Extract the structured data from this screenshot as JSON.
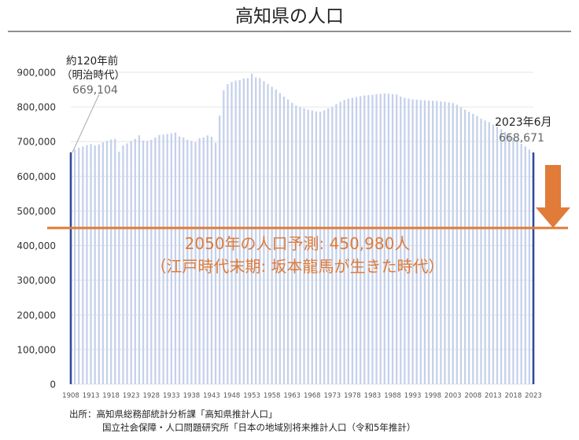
{
  "title": "高知県の人口",
  "colors": {
    "bar": "#c5d1ea",
    "bar_highlight": "#2f4a9e",
    "prediction_line": "#e07b39",
    "prediction_text": "#e07b39",
    "text": "#333333",
    "axis_label": "#888888"
  },
  "annotations": {
    "start_label_line1": "約120年前",
    "start_label_line2": "（明治時代）",
    "start_value": "669,104",
    "end_label": "2023年6月",
    "end_value": "668,671",
    "prediction_line1": "2050年の人口予測: 450,980人",
    "prediction_line2": "（江戸時代末期: 坂本龍馬が生きた時代）"
  },
  "source": {
    "line1": "出所：高知県総務部統計分析課「高知県推計人口」",
    "line2": "国立社会保障・人口問題研究所「日本の地域別将来推計人口（令和5年推計）"
  },
  "chart_data": {
    "type": "bar",
    "title": "高知県の人口",
    "xlabel": "",
    "ylabel": "",
    "ylim": [
      0,
      900000
    ],
    "yticks": [
      "0",
      "100,000",
      "200,000",
      "300,000",
      "400,000",
      "500,000",
      "600,000",
      "700,000",
      "800,000",
      "900,000"
    ],
    "xtick_labels": [
      "1908",
      "1913",
      "1918",
      "1923",
      "1928",
      "1933",
      "1938",
      "1943",
      "1948",
      "1953",
      "1958",
      "1963",
      "1968",
      "1973",
      "1978",
      "1983",
      "1988",
      "1993",
      "1998",
      "2003",
      "2008",
      "2013",
      "2018",
      "2023"
    ],
    "grid": true,
    "reference_line": {
      "value": 450980,
      "label": "2050年の人口予測: 450,980人"
    },
    "categories": [
      1908,
      1909,
      1910,
      1911,
      1912,
      1913,
      1914,
      1915,
      1916,
      1917,
      1918,
      1919,
      1920,
      1921,
      1922,
      1923,
      1924,
      1925,
      1926,
      1927,
      1928,
      1929,
      1930,
      1931,
      1932,
      1933,
      1934,
      1935,
      1936,
      1937,
      1938,
      1939,
      1940,
      1941,
      1942,
      1943,
      1944,
      1945,
      1946,
      1947,
      1948,
      1949,
      1950,
      1951,
      1952,
      1953,
      1954,
      1955,
      1956,
      1957,
      1958,
      1959,
      1960,
      1961,
      1962,
      1963,
      1964,
      1965,
      1966,
      1967,
      1968,
      1969,
      1970,
      1971,
      1972,
      1973,
      1974,
      1975,
      1976,
      1977,
      1978,
      1979,
      1980,
      1981,
      1982,
      1983,
      1984,
      1985,
      1986,
      1987,
      1988,
      1989,
      1990,
      1991,
      1992,
      1993,
      1994,
      1995,
      1996,
      1997,
      1998,
      1999,
      2000,
      2001,
      2002,
      2003,
      2004,
      2005,
      2006,
      2007,
      2008,
      2009,
      2010,
      2011,
      2012,
      2013,
      2014,
      2015,
      2016,
      2017,
      2018,
      2019,
      2020,
      2021,
      2022,
      2023
    ],
    "values": [
      669104,
      677000,
      682000,
      686000,
      690000,
      693000,
      689000,
      692000,
      698000,
      702000,
      706000,
      708000,
      671000,
      689000,
      695000,
      702000,
      708000,
      718000,
      703000,
      702000,
      705000,
      712000,
      719000,
      720000,
      722000,
      724000,
      726000,
      715000,
      712000,
      705000,
      702000,
      698000,
      710000,
      712000,
      718000,
      714000,
      697000,
      775000,
      848000,
      866000,
      872000,
      876000,
      878000,
      882000,
      883000,
      896000,
      885000,
      883000,
      874000,
      866000,
      858000,
      850000,
      840000,
      830000,
      822000,
      812000,
      804000,
      800000,
      796000,
      792000,
      790000,
      787000,
      786000,
      790000,
      796000,
      800000,
      808000,
      815000,
      820000,
      824000,
      826000,
      829000,
      831000,
      833000,
      834000,
      835000,
      837000,
      838000,
      839000,
      838000,
      837000,
      836000,
      830000,
      826000,
      824000,
      822000,
      821000,
      820000,
      819000,
      818000,
      818000,
      817000,
      816000,
      815000,
      813000,
      811000,
      806000,
      799000,
      792000,
      786000,
      780000,
      774000,
      766000,
      761000,
      756000,
      749000,
      743000,
      736000,
      728000,
      721000,
      713000,
      705000,
      694000,
      686000,
      677000,
      668671
    ]
  }
}
